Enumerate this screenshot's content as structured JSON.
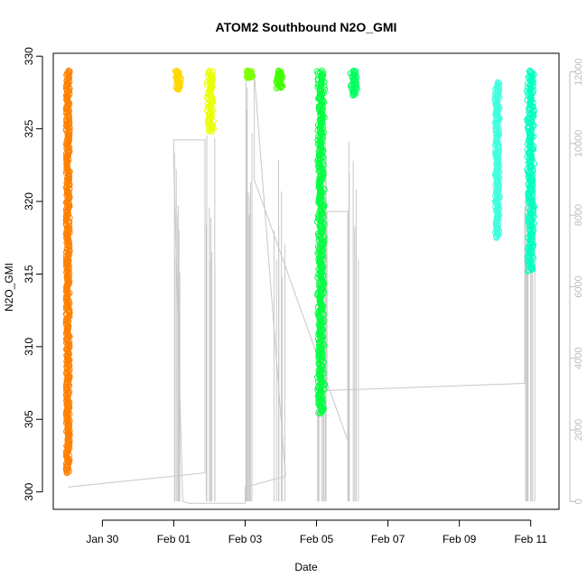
{
  "chart_data": {
    "type": "scatter",
    "title": "ATOM2 Southbound N2O_GMI",
    "xlabel": "Date",
    "ylabel": "N2O_GMI",
    "xlim": [
      "2017-01-28T15:00",
      "2017-02-11T19:00"
    ],
    "ylim": [
      298.8,
      330.2
    ],
    "y2lim": [
      -220,
      12520
    ],
    "x_ticks": [
      {
        "label": "Jan 30",
        "date": "2017-01-30"
      },
      {
        "label": "Feb 01",
        "date": "2017-02-01"
      },
      {
        "label": "Feb 03",
        "date": "2017-02-03"
      },
      {
        "label": "Feb 05",
        "date": "2017-02-05"
      },
      {
        "label": "Feb 07",
        "date": "2017-02-07"
      },
      {
        "label": "Feb 09",
        "date": "2017-02-09"
      },
      {
        "label": "Feb 11",
        "date": "2017-02-11"
      }
    ],
    "y_ticks": [
      300,
      305,
      310,
      315,
      320,
      325,
      330
    ],
    "y2_ticks": [
      0,
      2000,
      4000,
      6000,
      8000,
      10000,
      12000
    ],
    "grid": false,
    "legend": "none",
    "series": [
      {
        "color": "#ff8000",
        "marker": "circle",
        "x": "2017-01-29T00:50",
        "y_range": [
          301.3,
          329.0
        ]
      },
      {
        "color": "#ffd800",
        "marker": "circle",
        "x_range": [
          "2017-02-01T00:00",
          "2017-02-01T06:00"
        ],
        "y_range": [
          327.7,
          329.0
        ]
      },
      {
        "color": "#e9ff00",
        "marker": "circle",
        "x_range": [
          "2017-02-01T21:00",
          "2017-02-02T04:00"
        ],
        "y_range": [
          324.8,
          329.0
        ]
      },
      {
        "color": "#80ff00",
        "marker": "circle",
        "x_range": [
          "2017-02-03T00:00",
          "2017-02-03T06:00"
        ],
        "y_range": [
          328.5,
          329.0
        ]
      },
      {
        "color": "#40ff00",
        "marker": "circle",
        "x_range": [
          "2017-02-03T19:00",
          "2017-02-04T03:00"
        ],
        "y_range": [
          327.8,
          329.0
        ]
      },
      {
        "color": "#00ff40",
        "marker": "circle",
        "x_range": [
          "2017-02-04T23:00",
          "2017-02-05T07:00"
        ],
        "y_range": [
          305.4,
          329.0
        ]
      },
      {
        "color": "#00ff60",
        "marker": "circle",
        "x_range": [
          "2017-02-05T21:00",
          "2017-02-06T05:00"
        ],
        "y_range": [
          327.3,
          329.0
        ]
      },
      {
        "color": "#40ffe0",
        "marker": "circle",
        "x_range": [
          "2017-02-10T00:00",
          "2017-02-10T03:00"
        ],
        "y_range": [
          317.5,
          328.2
        ]
      },
      {
        "color": "#00ffc0",
        "marker": "circle",
        "x_range": [
          "2017-02-10T20:00",
          "2017-02-11T04:00"
        ],
        "y_range": [
          315.2,
          329.0
        ]
      }
    ],
    "altitude_series": {
      "color": "#c8c8c8",
      "axis": "right",
      "points": [
        [
          "2017-01-29T00:50",
          400
        ],
        [
          "2017-02-01T21:00",
          800
        ],
        [
          "2017-02-01T21:00",
          10100
        ],
        [
          "2017-02-01T00:00",
          10100
        ],
        [
          "2017-02-01T00:00",
          9500
        ],
        [
          "2017-02-01T06:00",
          0
        ],
        [
          "2017-02-01T10:00",
          -50
        ],
        [
          "2017-02-03T00:00",
          -50
        ],
        [
          "2017-02-03T00:00",
          400
        ],
        [
          "2017-02-04T03:00",
          700
        ],
        [
          "2017-02-04T03:00",
          800
        ],
        [
          "2017-02-03T06:00",
          12000
        ],
        [
          "2017-02-03T06:00",
          9000
        ],
        [
          "2017-02-05T21:00",
          1700
        ],
        [
          "2017-02-05T21:00",
          8100
        ],
        [
          "2017-02-05T07:00",
          8100
        ],
        [
          "2017-02-05T07:00",
          3100
        ],
        [
          "2017-02-10T20:00",
          3300
        ],
        [
          "2017-02-10T20:00",
          8100
        ],
        [
          "2017-02-11T04:00",
          8500
        ]
      ]
    }
  }
}
